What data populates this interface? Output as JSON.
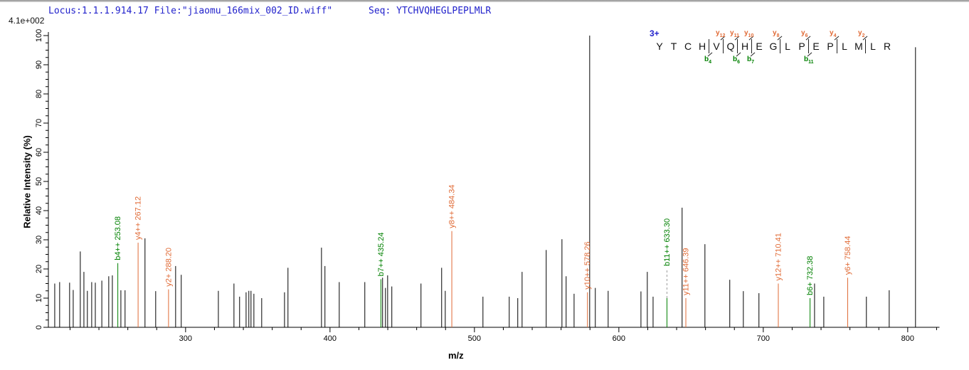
{
  "header": {
    "locus_file": "Locus:1.1.1.914.17 File:\"jiaomu_166mix_002_ID.wiff\"",
    "seq_label": "Seq: YTCHVQHEGLPEPLMLR",
    "intensity_scale": "4.1e+002"
  },
  "sequence_annotation": {
    "charge": "3+",
    "residues": [
      "Y",
      "T",
      "C",
      "H",
      "V",
      "Q",
      "H",
      "E",
      "G",
      "L",
      "P",
      "E",
      "P",
      "L",
      "M",
      "L",
      "R"
    ],
    "cleavages": [
      {
        "after": 4,
        "b": "b4"
      },
      {
        "after": 5,
        "y": "y12"
      },
      {
        "after": 6,
        "y": "y11",
        "b": "b6"
      },
      {
        "after": 7,
        "y": "y10",
        "b": "b7"
      },
      {
        "after": 9,
        "y": "y8"
      },
      {
        "after": 11,
        "y": "y6",
        "b": "b11"
      },
      {
        "after": 13,
        "y": "y4"
      },
      {
        "after": 15,
        "y": "y2"
      }
    ]
  },
  "chart_data": {
    "type": "bar",
    "subtype": "mass-spectrum-stick-plot",
    "title": "",
    "xlabel": "m/z",
    "ylabel": "Relative  Intensity (%)",
    "xlim": [
      205,
      822
    ],
    "ylim": [
      0,
      100
    ],
    "x_major_ticks": [
      300,
      400,
      500,
      600,
      700,
      800
    ],
    "x_minor_step": 20,
    "y_major_step": 10,
    "y_minor_step": 2.5,
    "grid": false,
    "legend": "none",
    "colors": {
      "peak": "#000000",
      "b_ion": "#008000",
      "y_ion": "#e06a35",
      "dash": "#9a9a9a",
      "header_blue": "#2222cc"
    },
    "peaks": [
      [
        209.4,
        15
      ],
      [
        212.8,
        15.5
      ],
      [
        219.7,
        15.3
      ],
      [
        222.2,
        12.8
      ],
      [
        227.1,
        26
      ],
      [
        229.6,
        19
      ],
      [
        232.0,
        12.5
      ],
      [
        235.0,
        15.5
      ],
      [
        237.5,
        15.3
      ],
      [
        242.0,
        16
      ],
      [
        246.8,
        17.5
      ],
      [
        249.3,
        17.8
      ],
      [
        255.2,
        12.7
      ],
      [
        258.1,
        12.7
      ],
      [
        271.9,
        30.5
      ],
      [
        279.3,
        12.4
      ],
      [
        293.1,
        21
      ],
      [
        297.0,
        18
      ],
      [
        322.7,
        12.5
      ],
      [
        333.5,
        15
      ],
      [
        337.4,
        10.5
      ],
      [
        341.9,
        12
      ],
      [
        343.8,
        12.5
      ],
      [
        345.3,
        12.5
      ],
      [
        347.3,
        11.5
      ],
      [
        352.7,
        10
      ],
      [
        368.5,
        12
      ],
      [
        370.9,
        20.4
      ],
      [
        394.1,
        27.3
      ],
      [
        396.5,
        21
      ],
      [
        406.4,
        15.5
      ],
      [
        424.1,
        15.5
      ],
      [
        436.4,
        17
      ],
      [
        438.4,
        13.5
      ],
      [
        439.9,
        17.8
      ],
      [
        442.8,
        14
      ],
      [
        463.0,
        15
      ],
      [
        477.3,
        20.4
      ],
      [
        479.8,
        12.5
      ],
      [
        505.9,
        10.5
      ],
      [
        524.1,
        10.5
      ],
      [
        530.0,
        10
      ],
      [
        533.0,
        19
      ],
      [
        549.7,
        26.5
      ],
      [
        560.6,
        30.2
      ],
      [
        563.5,
        17.5
      ],
      [
        569.0,
        11.5
      ],
      [
        579.8,
        100
      ],
      [
        583.7,
        13.5
      ],
      [
        592.6,
        12.5
      ],
      [
        615.3,
        12.3
      ],
      [
        619.7,
        19
      ],
      [
        623.7,
        10.5
      ],
      [
        643.8,
        41
      ],
      [
        659.6,
        28.5
      ],
      [
        676.8,
        16.3
      ],
      [
        686.2,
        12.4
      ],
      [
        697.0,
        11.7
      ],
      [
        735.5,
        15
      ],
      [
        741.9,
        10.5
      ],
      [
        771.4,
        10.5
      ],
      [
        787.2,
        12.7
      ],
      [
        805.4,
        96
      ]
    ],
    "fragment_markers": [
      {
        "mz": 253.08,
        "i": 22,
        "type": "b",
        "label": "b4++ 253.08"
      },
      {
        "mz": 267.12,
        "i": 29,
        "type": "y",
        "label": "y4++ 267.12"
      },
      {
        "mz": 288.2,
        "i": 13,
        "type": "y",
        "label": "y2+ 288.20"
      },
      {
        "mz": 435.24,
        "i": 16.5,
        "type": "b",
        "label": "b7++ 435.24"
      },
      {
        "mz": 484.34,
        "i": 33,
        "type": "y",
        "label": "y8++ 484.34"
      },
      {
        "mz": 578.26,
        "i": 12,
        "type": "y",
        "label": "y10++ 578.26"
      },
      {
        "mz": 633.3,
        "i": 10,
        "dash_to": 20,
        "type": "b",
        "label": "b11++ 633.30"
      },
      {
        "mz": 646.39,
        "i": 10,
        "type": "y",
        "label": "y11++ 646.39"
      },
      {
        "mz": 710.41,
        "i": 15,
        "type": "y",
        "label": "y12++ 710.41"
      },
      {
        "mz": 732.38,
        "i": 10,
        "type": "b",
        "label": "b6+ 732.38"
      },
      {
        "mz": 758.44,
        "i": 17,
        "type": "y",
        "label": "y6+ 758.44"
      }
    ]
  }
}
